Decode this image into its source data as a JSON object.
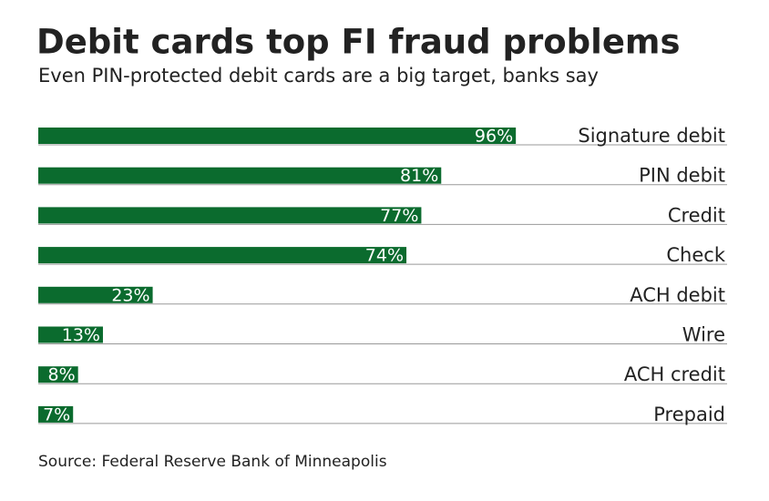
{
  "chart_data": {
    "type": "bar",
    "orientation": "horizontal",
    "title": "Debit cards top FI fraud problems",
    "subtitle": "Even PIN-protected debit cards are a big target, banks say",
    "categories": [
      "Signature debit",
      "PIN debit",
      "Credit",
      "Check",
      "ACH debit",
      "Wire",
      "ACH credit",
      "Prepaid"
    ],
    "values": [
      96,
      81,
      77,
      74,
      23,
      13,
      8,
      7
    ],
    "value_labels": [
      "96%",
      "81%",
      "77%",
      "74%",
      "23%",
      "13%",
      "8%",
      "7%"
    ],
    "color": "#0b6b2e",
    "xlim": [
      0,
      100
    ],
    "source": "Source: Federal Reserve Bank of Minneapolis"
  }
}
